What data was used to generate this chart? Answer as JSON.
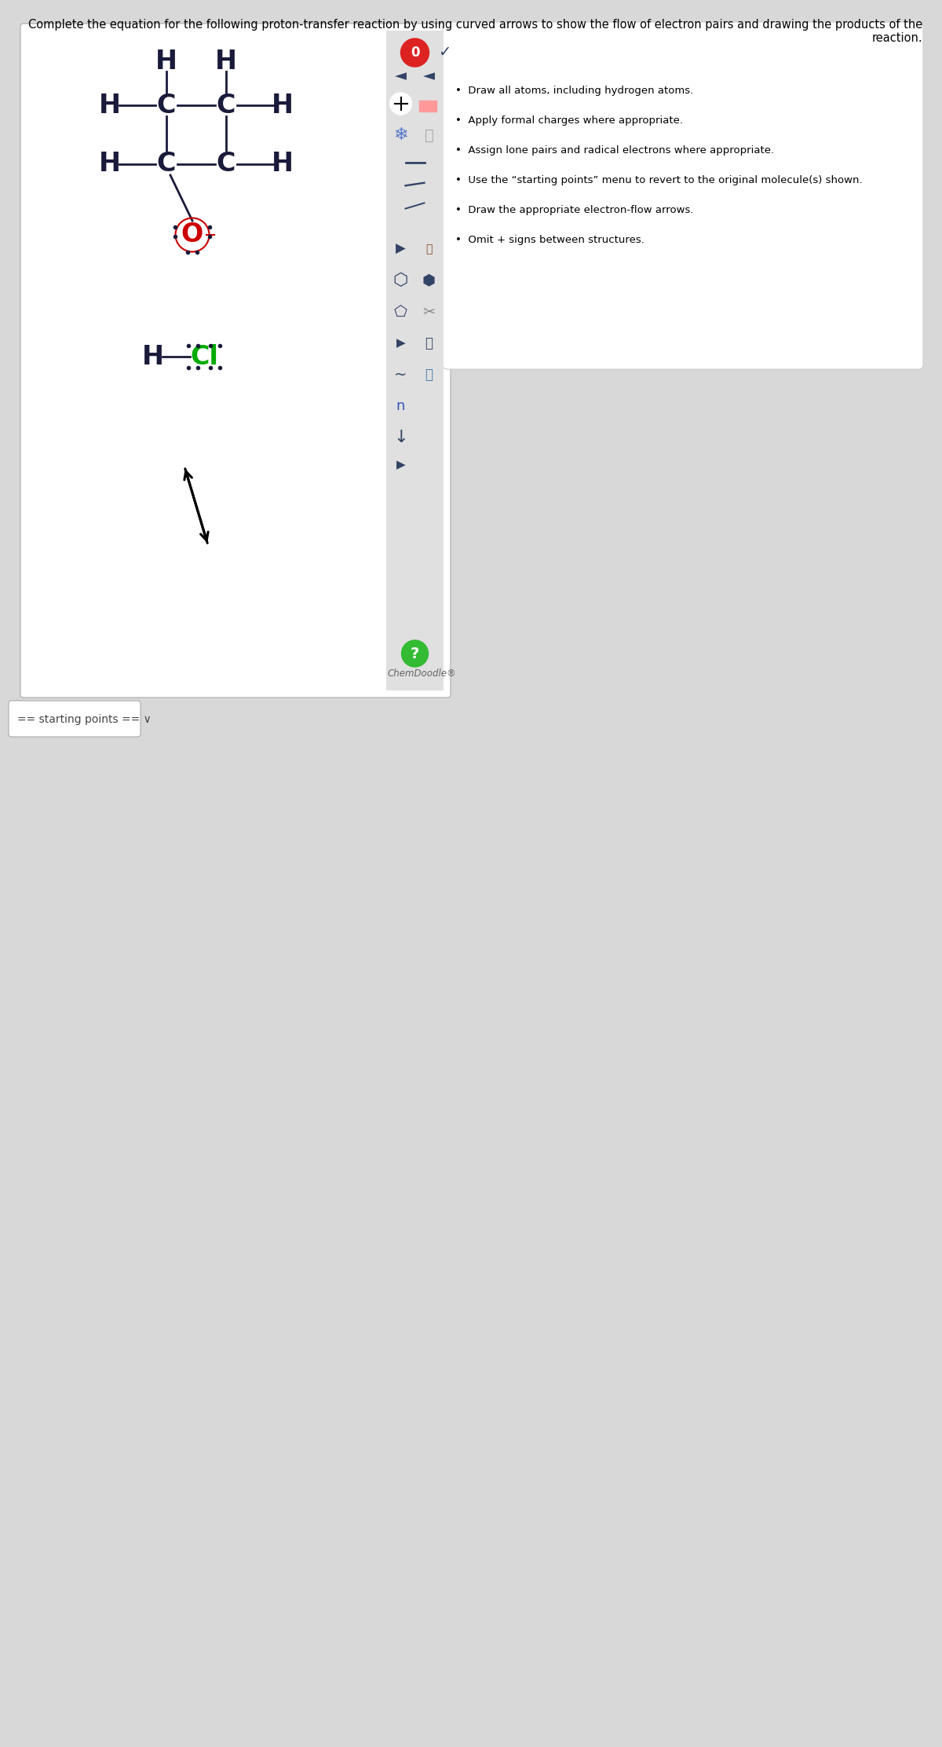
{
  "bg_color": "#d8d8d8",
  "panel_bg": "#f5f5f5",
  "white_bg": "#ffffff",
  "title": "Complete the equation for the following proton-transfer reaction by using curved arrows to show the flow of electron pairs and drawing the products of the reaction.",
  "bullets": [
    "Draw all atoms, including hydrogen atoms.",
    "Apply formal charges where appropriate.",
    "Assign lone pairs and radical electrons where appropriate.",
    "Use the “starting points” menu to revert to the original molecule(s) shown.",
    "Draw the appropriate electron-flow arrows.",
    "Omit + signs between structures."
  ],
  "chemdoodle": "ChemDoodle®",
  "footer": "== starting points == ∨",
  "atom_color_C": "#1a1a3a",
  "atom_color_H": "#1a1a3a",
  "atom_color_O": "#cc0000",
  "atom_color_Cl": "#00aa00",
  "bond_color": "#1a1a3a",
  "dot_color": "#1a1a3a",
  "toolbar_bg": "#e0e0e0",
  "red_btn": "#dd2222",
  "green_btn": "#33bb33"
}
